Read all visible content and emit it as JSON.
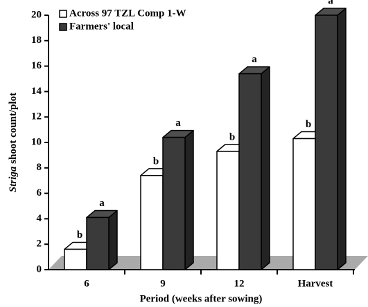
{
  "chart_data": {
    "type": "bar3d",
    "ylabel": {
      "italic": "Striga",
      "rest": "shoot count/plot"
    },
    "xlabel": "Period (weeks after sowing)",
    "categories": [
      "6",
      "9",
      "12",
      "Harvest"
    ],
    "series": [
      {
        "name": "Across 97 TZL Comp 1-W",
        "color": "#ffffff",
        "values": [
          1.6,
          7.4,
          9.3,
          10.3
        ],
        "letters": [
          "b",
          "b",
          "b",
          "b"
        ]
      },
      {
        "name": "Farmers' local",
        "color": "#3a3a3a",
        "values": [
          4.1,
          10.4,
          15.4,
          20.0
        ],
        "letters": [
          "a",
          "a",
          "a",
          "a"
        ]
      }
    ],
    "ylim": [
      0,
      20
    ],
    "yticks": [
      0,
      2,
      4,
      6,
      8,
      10,
      12,
      14,
      16,
      18,
      20
    ],
    "grid": false
  }
}
